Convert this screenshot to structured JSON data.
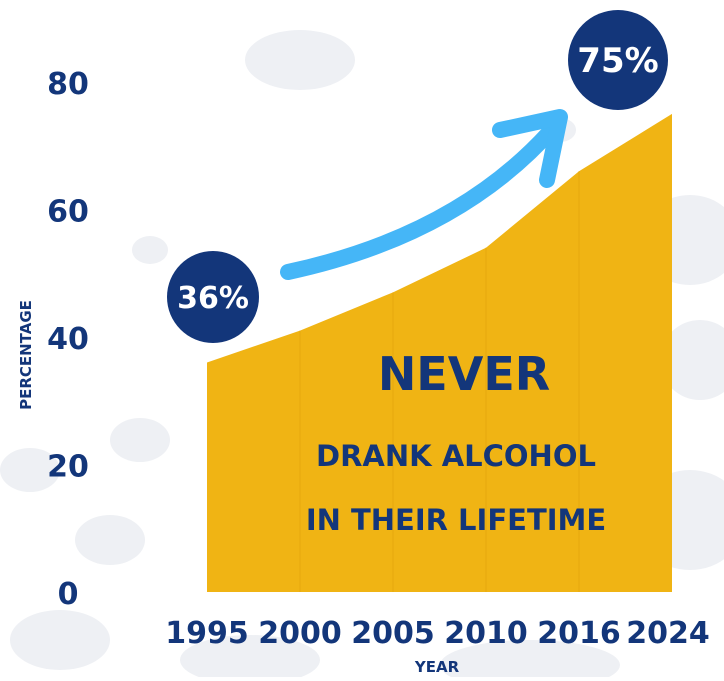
{
  "chart_data": {
    "type": "area",
    "x": [
      "1995",
      "2000",
      "2005",
      "2010",
      "2016",
      "2024"
    ],
    "values": [
      36,
      41,
      47,
      54,
      66,
      75
    ],
    "ylim": [
      0,
      80
    ],
    "yticks": [
      "0",
      "20",
      "40",
      "60",
      "80"
    ],
    "xlabel": "YEAR",
    "ylabel": "PERCENTAGE",
    "grid": false,
    "colors": {
      "area": "#f0b414",
      "text": "#13367a",
      "callout": "#13367a",
      "arrow": "#45b6f7"
    },
    "annotations": {
      "start_label": "36%",
      "end_label": "75%",
      "headline": "NEVER",
      "line1": "DRANK ALCOHOL",
      "line2": "IN THEIR LIFETIME"
    }
  }
}
